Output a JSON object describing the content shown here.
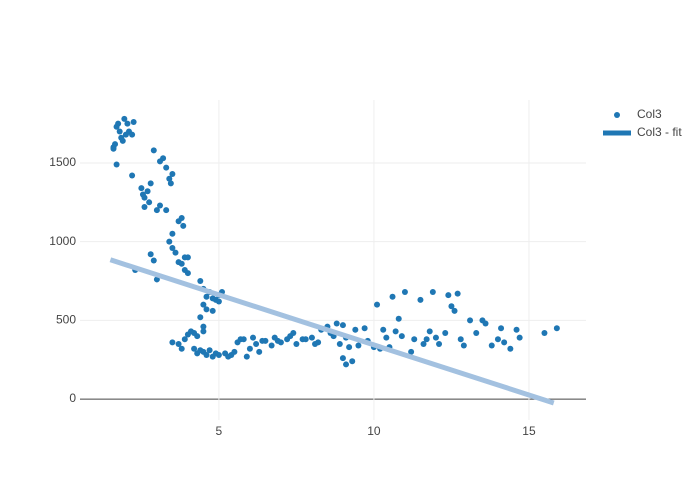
{
  "chart_data": {
    "type": "scatter",
    "xlim": [
      0.52,
      16.84
    ],
    "ylim": [
      -133,
      1900
    ],
    "xticks": [
      5,
      10,
      15
    ],
    "yticks": [
      0,
      500,
      1000,
      1500
    ],
    "grid": true,
    "legend": "top-right",
    "series": [
      {
        "name": "Col3",
        "mode": "markers",
        "color": "#1f77b4",
        "x": [
          1.6,
          1.65,
          1.7,
          1.75,
          1.8,
          1.85,
          1.9,
          1.95,
          2.0,
          2.05,
          2.1,
          2.2,
          2.25,
          1.7,
          1.6,
          2.2,
          2.3,
          2.5,
          2.55,
          2.6,
          2.7,
          2.75,
          2.8,
          2.6,
          2.9,
          3.1,
          3.2,
          3.3,
          3.4,
          3.5,
          3.45,
          3.0,
          3.1,
          3.3,
          3.5,
          3.4,
          3.5,
          3.6,
          3.7,
          3.8,
          3.85,
          3.9,
          3.8,
          3.9,
          4.0,
          4.0,
          2.8,
          3.0,
          2.9,
          3.7,
          4.4,
          4.5,
          4.6,
          4.5,
          4.7,
          4.8,
          4.9,
          5.0,
          5.1,
          5.0,
          4.6,
          4.8,
          4.5,
          4.4,
          4.5,
          4.3,
          4.2,
          3.5,
          3.7,
          3.8,
          3.9,
          4.0,
          4.1,
          4.2,
          4.3,
          4.5,
          4.6,
          4.7,
          4.8,
          5.0,
          5.2,
          5.3,
          5.5,
          5.6,
          5.8,
          5.9,
          6.0,
          6.1,
          6.2,
          6.3,
          6.5,
          6.7,
          6.8,
          7.0,
          7.2,
          7.4,
          7.5,
          7.7,
          8.0,
          8.2,
          8.3,
          8.5,
          8.7,
          8.8,
          9.0,
          9.1,
          9.2,
          9.0,
          9.1,
          9.3,
          8.9,
          9.5,
          9.7,
          10.0,
          10.1,
          10.3,
          10.4,
          10.5,
          10.6,
          10.7,
          10.8,
          10.9,
          11.0,
          11.2,
          11.5,
          11.6,
          11.7,
          11.8,
          11.9,
          12.0,
          12.1,
          12.4,
          12.5,
          12.6,
          12.7,
          12.8,
          12.9,
          13.1,
          13.3,
          13.5,
          13.6,
          13.8,
          14.0,
          14.1,
          14.2,
          14.4,
          14.6,
          14.7,
          15.5,
          15.9,
          12.3,
          11.3,
          10.2,
          9.8,
          8.6,
          7.8,
          6.4,
          5.7,
          5.4,
          4.9,
          4.4,
          6.9,
          7.3,
          8.1,
          9.4
        ],
        "y": [
          1600,
          1620,
          1730,
          1750,
          1700,
          1660,
          1640,
          1780,
          1680,
          1750,
          1700,
          1680,
          1760,
          1490,
          1590,
          1420,
          820,
          1340,
          1300,
          1280,
          1320,
          1250,
          1370,
          1220,
          1580,
          1510,
          1530,
          1470,
          1400,
          1430,
          1370,
          1200,
          1230,
          1200,
          1050,
          1000,
          960,
          930,
          1130,
          1150,
          1100,
          900,
          860,
          820,
          800,
          900,
          920,
          760,
          880,
          870,
          750,
          700,
          650,
          600,
          680,
          640,
          630,
          660,
          680,
          620,
          570,
          560,
          460,
          520,
          430,
          400,
          420,
          360,
          350,
          320,
          380,
          410,
          430,
          320,
          290,
          300,
          280,
          310,
          270,
          280,
          290,
          270,
          300,
          360,
          380,
          270,
          320,
          390,
          350,
          300,
          370,
          340,
          390,
          360,
          380,
          420,
          350,
          380,
          390,
          360,
          440,
          460,
          400,
          480,
          470,
          390,
          330,
          260,
          220,
          240,
          350,
          340,
          450,
          330,
          600,
          440,
          390,
          330,
          650,
          430,
          510,
          400,
          680,
          300,
          630,
          350,
          380,
          430,
          680,
          390,
          350,
          660,
          590,
          560,
          670,
          380,
          340,
          500,
          420,
          500,
          480,
          340,
          380,
          450,
          360,
          320,
          440,
          390,
          420,
          450,
          420,
          380,
          320,
          370,
          420,
          380,
          370,
          380,
          280,
          290,
          310,
          370,
          400,
          350,
          440
        ]
      },
      {
        "name": "Col3 - fit",
        "mode": "lines",
        "color": "#a3c1e0",
        "x": [
          1.5,
          15.8
        ],
        "y": [
          885,
          -25
        ]
      }
    ]
  }
}
